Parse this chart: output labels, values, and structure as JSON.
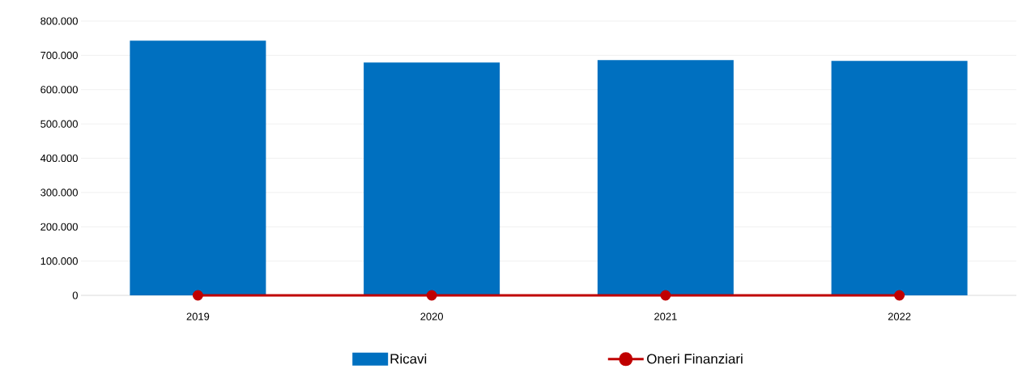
{
  "chart_data": {
    "type": "bar",
    "categories": [
      "2019",
      "2020",
      "2021",
      "2022"
    ],
    "series": [
      {
        "name": "Ricavi",
        "color": "#0070c0",
        "values": [
          743000,
          679000,
          686000,
          684000
        ]
      },
      {
        "name": "Oneri Finanziari",
        "type": "line",
        "color": "#c00000",
        "marker": "circle",
        "values": [
          0,
          0,
          0,
          0
        ]
      }
    ],
    "ylim": [
      0,
      800000
    ],
    "yticks": [
      {
        "value": 0,
        "label": "0"
      },
      {
        "value": 100000,
        "label": "100.000"
      },
      {
        "value": 200000,
        "label": "200.000"
      },
      {
        "value": 300000,
        "label": "300.000"
      },
      {
        "value": 400000,
        "label": "400.000"
      },
      {
        "value": 500000,
        "label": "500.000"
      },
      {
        "value": 600000,
        "label": "600.000"
      },
      {
        "value": 700000,
        "label": "700.000"
      },
      {
        "value": 800000,
        "label": "800.000"
      }
    ],
    "grid": "y",
    "legend": "bottom"
  }
}
